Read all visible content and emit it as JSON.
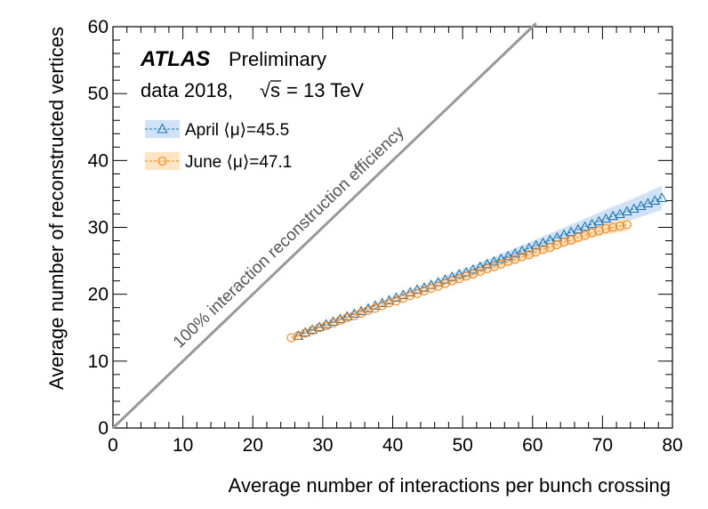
{
  "chart_data": {
    "type": "line",
    "xlabel": "Average number of interactions per bunch crossing",
    "ylabel": "Average number of reconstructed vertices",
    "xlim": [
      0,
      80
    ],
    "ylim": [
      0,
      60
    ],
    "xticks": [
      0,
      10,
      20,
      30,
      40,
      50,
      60,
      70,
      80
    ],
    "yticks": [
      0,
      10,
      20,
      30,
      40,
      50,
      60
    ],
    "atlas_label": "ATLAS",
    "atlas_sublabel": "Preliminary",
    "dataset_label": "data 2018,",
    "energy_label": "= 13 TeV",
    "sqrt_symbol": "√",
    "sqrt_var": "s",
    "legend_placement": "top-left",
    "reference_line": {
      "label": "100% interaction reconstruction efficiency",
      "color": "#999999",
      "x": [
        0,
        60.5
      ],
      "y": [
        0,
        60.5
      ]
    },
    "series": [
      {
        "name": "April ⟨μ⟩=45.5",
        "marker": "triangle",
        "color": "#1f77b4",
        "band_color": "#cfe2f7",
        "x": [
          26.5,
          27.5,
          28.5,
          29.5,
          30.5,
          31.5,
          32.5,
          33.5,
          34.5,
          35.5,
          36.5,
          37.5,
          38.5,
          39.5,
          40.5,
          41.5,
          42.5,
          43.5,
          44.5,
          45.5,
          46.5,
          47.5,
          48.5,
          49.5,
          50.5,
          51.5,
          52.5,
          53.5,
          54.5,
          55.5,
          56.5,
          57.5,
          58.5,
          59.5,
          60.5,
          61.5,
          62.5,
          63.5,
          64.5,
          65.5,
          66.5,
          67.5,
          68.5,
          69.5,
          70.5,
          71.5,
          72.5,
          73.5,
          74.5,
          75.5,
          76.5,
          77.5,
          78.5
        ],
        "y": [
          13.8,
          14.3,
          14.7,
          15.1,
          15.5,
          15.9,
          16.3,
          16.7,
          17.1,
          17.5,
          17.9,
          18.3,
          18.7,
          19.1,
          19.5,
          19.9,
          20.3,
          20.7,
          21.0,
          21.4,
          21.8,
          22.2,
          22.6,
          23.0,
          23.3,
          23.7,
          24.1,
          24.5,
          24.9,
          25.3,
          25.7,
          26.1,
          26.5,
          26.9,
          27.3,
          27.7,
          28.1,
          28.5,
          28.9,
          29.3,
          29.7,
          30.1,
          30.5,
          30.9,
          31.3,
          31.7,
          32.0,
          32.4,
          32.8,
          33.2,
          33.6,
          34.0,
          34.4
        ]
      },
      {
        "name": "June ⟨μ⟩=47.1",
        "marker": "circle",
        "color": "#ff7f0e",
        "band_color": "#fde5c4",
        "x": [
          25.5,
          26.5,
          27.5,
          28.5,
          29.5,
          30.5,
          31.5,
          32.5,
          33.5,
          34.5,
          35.5,
          36.5,
          37.5,
          38.5,
          39.5,
          40.5,
          41.5,
          42.5,
          43.5,
          44.5,
          45.5,
          46.5,
          47.5,
          48.5,
          49.5,
          50.5,
          51.5,
          52.5,
          53.5,
          54.5,
          55.5,
          56.5,
          57.5,
          58.5,
          59.5,
          60.5,
          61.5,
          62.5,
          63.5,
          64.5,
          65.5,
          66.5,
          67.5,
          68.5,
          69.5,
          70.5,
          71.5,
          72.5,
          73.5
        ],
        "y": [
          13.5,
          13.8,
          14.2,
          14.6,
          15.0,
          15.3,
          15.7,
          16.1,
          16.5,
          16.8,
          17.2,
          17.6,
          17.9,
          18.3,
          18.7,
          19.0,
          19.4,
          19.8,
          20.1,
          20.5,
          20.9,
          21.2,
          21.6,
          22.0,
          22.3,
          22.7,
          23.0,
          23.4,
          23.8,
          24.1,
          24.5,
          24.9,
          25.2,
          25.6,
          25.9,
          26.3,
          26.7,
          27.0,
          27.4,
          27.8,
          28.1,
          28.5,
          28.8,
          29.2,
          29.5,
          29.8,
          30.0,
          30.2,
          30.4
        ]
      }
    ]
  }
}
